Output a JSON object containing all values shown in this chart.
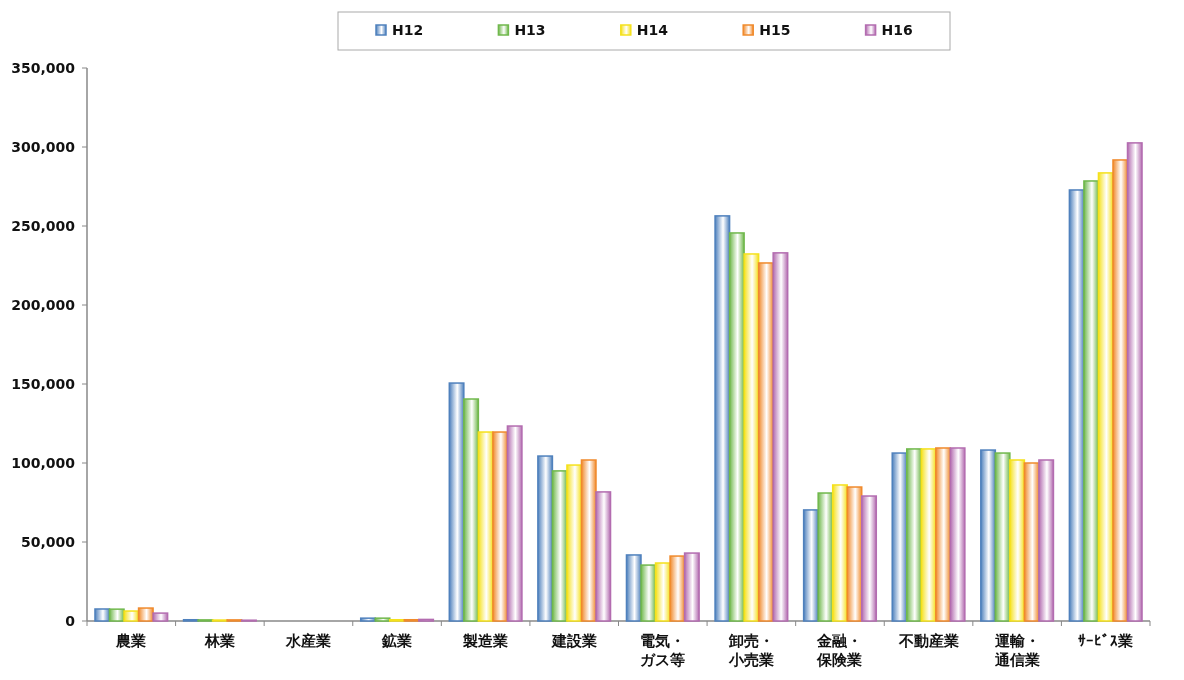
{
  "chart_data": {
    "type": "bar",
    "categories": [
      "農業",
      "林業",
      "水産業",
      "鉱業",
      "製造業",
      "建設業",
      "電気・ガス等",
      "卸売・小売業",
      "金融・保険業",
      "不動産業",
      "運輸・通信業",
      "ｻｰﾋﾞｽ業"
    ],
    "series": [
      {
        "name": "H12",
        "color": "#4f81bd",
        "values": [
          7600,
          800,
          0,
          1800,
          150600,
          104400,
          41800,
          256400,
          70300,
          106300,
          108200,
          272800
        ]
      },
      {
        "name": "H13",
        "color": "#70b84c",
        "values": [
          7500,
          700,
          0,
          1800,
          140500,
          95000,
          35400,
          245600,
          81000,
          108900,
          106300,
          278500
        ]
      },
      {
        "name": "H14",
        "color": "#f5e11c",
        "values": [
          6300,
          600,
          0,
          800,
          119600,
          98700,
          36700,
          232300,
          86100,
          108900,
          101900,
          283600
        ]
      },
      {
        "name": "H15",
        "color": "#f08a2c",
        "values": [
          8200,
          700,
          0,
          800,
          119600,
          101900,
          41100,
          226600,
          84800,
          109500,
          100000,
          291800
        ]
      },
      {
        "name": "H16",
        "color": "#b36cb0",
        "values": [
          5000,
          500,
          0,
          1000,
          123400,
          81700,
          43000,
          233000,
          79100,
          109500,
          101900,
          302600
        ]
      }
    ],
    "ylim": [
      0,
      350000
    ],
    "yticks": [
      {
        "value": 0,
        "label": "0"
      },
      {
        "value": 50000,
        "label": "50,000"
      },
      {
        "value": 100000,
        "label": "100,000"
      },
      {
        "value": 150000,
        "label": "150,000"
      },
      {
        "value": 200000,
        "label": "200,000"
      },
      {
        "value": 250000,
        "label": "250,000"
      },
      {
        "value": 300000,
        "label": "300,000"
      },
      {
        "value": 350000,
        "label": "350,000"
      }
    ],
    "grid": false,
    "legend": "top"
  }
}
